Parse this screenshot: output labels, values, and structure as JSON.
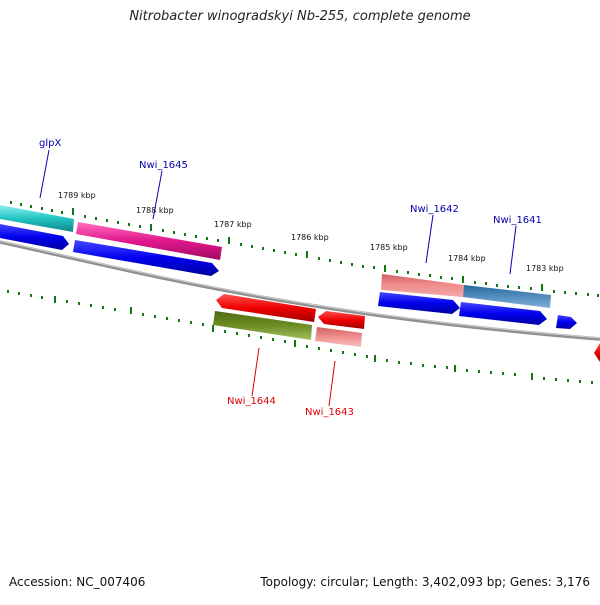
{
  "header": {
    "title": "Nitrobacter winogradskyi Nb-255, complete genome"
  },
  "footer": {
    "accession": "Accession: NC_007406",
    "summary": "Topology: circular; Length: 3,402,093 bp; Genes: 3,176"
  },
  "ruler_labels": [
    "1789 kbp",
    "1788 kbp",
    "1787 kbp",
    "1786 kbp",
    "1785 kbp",
    "1784 kbp",
    "1783 kbp"
  ],
  "gene_labels": [
    {
      "text": "glpX",
      "strand": "forward"
    },
    {
      "text": "Nwi_1645",
      "strand": "forward"
    },
    {
      "text": "Nwi_1642",
      "strand": "forward"
    },
    {
      "text": "Nwi_1641",
      "strand": "forward"
    },
    {
      "text": "Nwi_1644",
      "strand": "reverse"
    },
    {
      "text": "Nwi_1643",
      "strand": "reverse"
    }
  ],
  "colors": {
    "forward_label": "#0000aa",
    "reverse_label": "#dd0000",
    "ticks": "#117711",
    "backbone": "#888888",
    "cds_forward": "#0000ee",
    "cds_reverse": "#ee0000",
    "feature_cyan": "#22c4c4",
    "feature_magenta": "#e0188c",
    "feature_salmon": "#ee8888",
    "feature_steelblue": "#4a86b8",
    "feature_olive": "#6b8e23",
    "feature_pink": "#f09090"
  }
}
